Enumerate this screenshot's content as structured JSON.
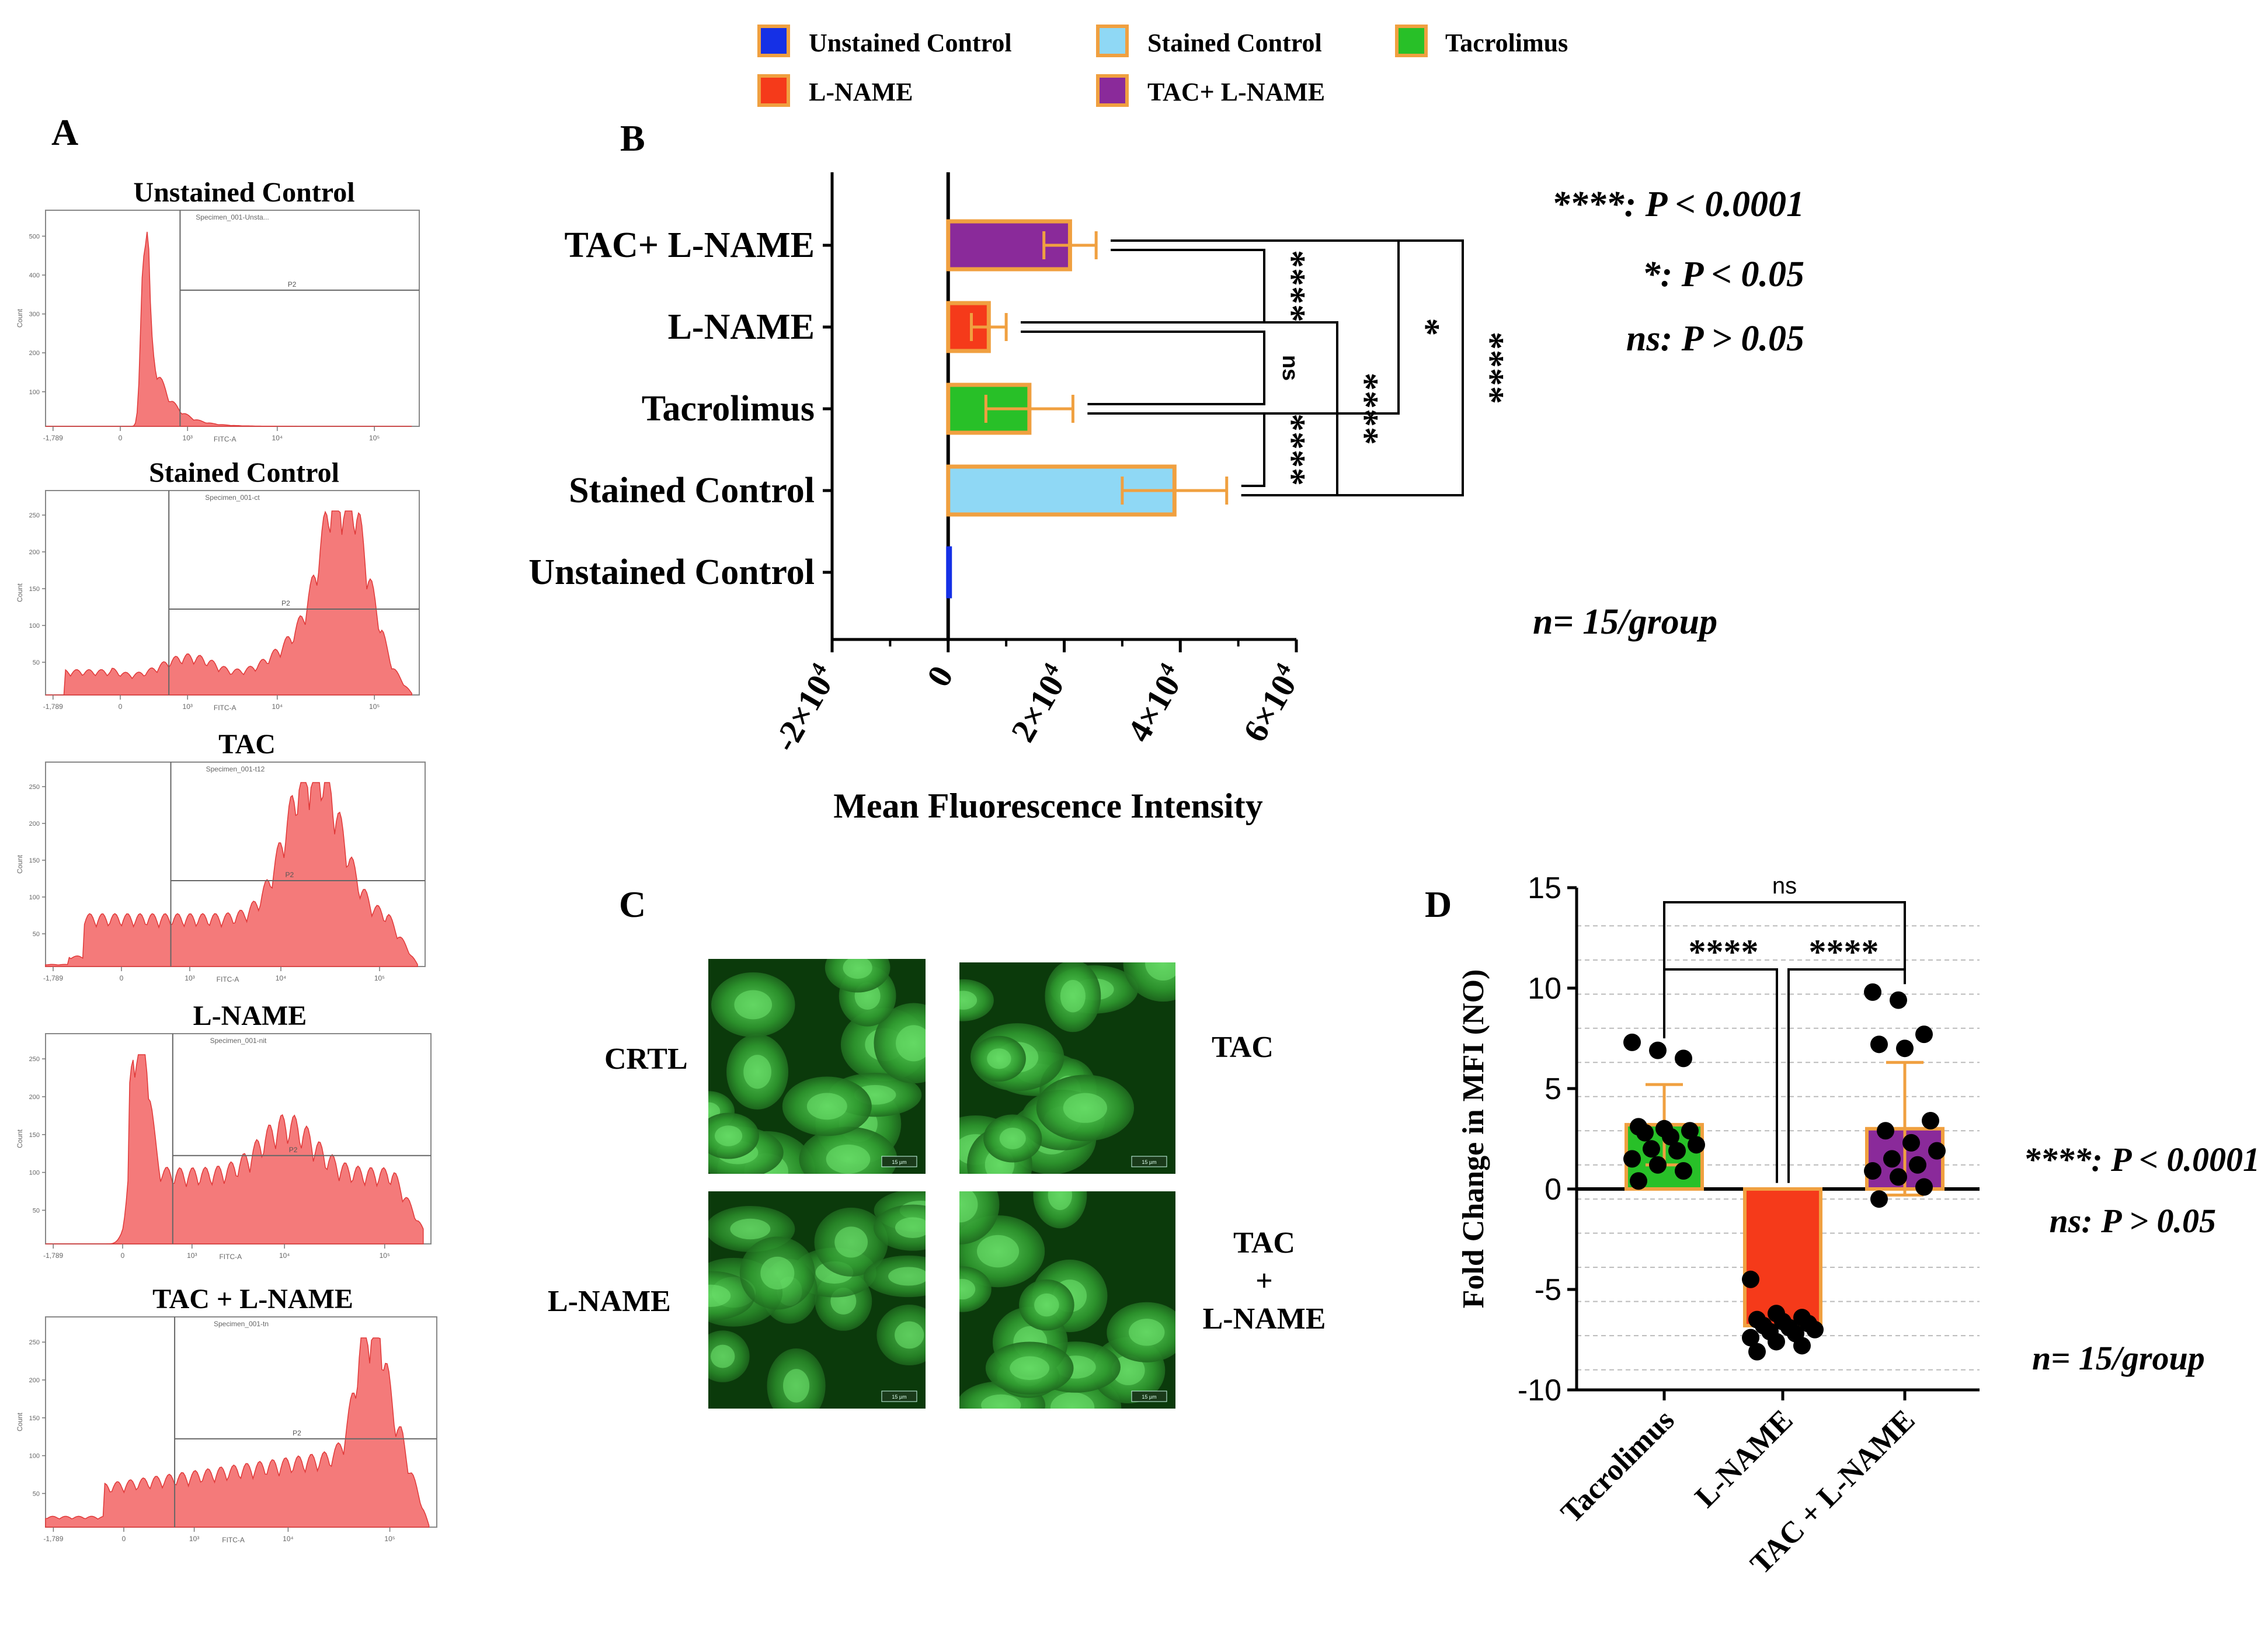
{
  "legend": [
    {
      "label": "Unstained Control",
      "fill": "#1530e6",
      "stroke": "#1530e6"
    },
    {
      "label": "Stained Control",
      "fill": "#8fd8f5",
      "stroke": "#f0a040"
    },
    {
      "label": "Tacrolimus",
      "fill": "#28c028",
      "stroke": "#f0a040"
    },
    {
      "label": "L-NAME",
      "fill": "#f53a1a",
      "stroke": "#f0a040"
    },
    {
      "label": "TAC+ L-NAME",
      "fill": "#8a2a9a",
      "stroke": "#f0a040"
    }
  ],
  "colors": {
    "hist_fill": "#f47a7a",
    "hist_line": "#e03838",
    "err": "#f0a040",
    "micro_bg": "#0b3a0b",
    "micro_cell": "#3fbf3f"
  },
  "panel_letters": {
    "a": "A",
    "b": "B",
    "c": "C",
    "d": "D"
  },
  "panel_a": {
    "histograms": [
      {
        "title": "Unstained Control",
        "caption": "Specimen_001-Unsta...",
        "axis_label": "FITC-A",
        "gate": "P2",
        "ticks": [
          "-1,789",
          "0",
          "10³",
          "10⁴",
          "10⁵"
        ],
        "y_ticks": [
          "500",
          "400",
          "300",
          "200",
          "100"
        ],
        "y_label": "Count"
      },
      {
        "title": "Stained Control",
        "caption": "Specimen_001-ct",
        "axis_label": "FITC-A",
        "gate": "P2",
        "ticks": [
          "-1,789",
          "0",
          "10³",
          "10⁴",
          "10⁵"
        ],
        "y_ticks": [
          "250",
          "200",
          "150",
          "100",
          "50"
        ],
        "y_label": "Count"
      },
      {
        "title": "TAC",
        "caption": "Specimen_001-t12",
        "axis_label": "FITC-A",
        "gate": "P2",
        "ticks": [
          "-1,789",
          "0",
          "10³",
          "10⁴",
          "10⁵"
        ],
        "y_ticks": [
          "250",
          "200",
          "150",
          "100",
          "50"
        ],
        "y_label": "Count"
      },
      {
        "title": "L-NAME",
        "caption": "Specimen_001-nit",
        "axis_label": "FITC-A",
        "gate": "P2",
        "ticks": [
          "-1,789",
          "0",
          "10³",
          "10⁴",
          "10⁵"
        ],
        "y_ticks": [
          "250",
          "200",
          "150",
          "100",
          "50"
        ],
        "y_label": "Count"
      },
      {
        "title": "TAC + L-NAME",
        "caption": "Specimen_001-tn",
        "axis_label": "FITC-A",
        "gate": "P2",
        "ticks": [
          "-1,789",
          "0",
          "10³",
          "10⁴",
          "10⁵"
        ],
        "y_ticks": [
          "250",
          "200",
          "150",
          "100",
          "50"
        ],
        "y_label": "Count"
      }
    ]
  },
  "chart_data": [
    {
      "type": "bar",
      "orientation": "horizontal",
      "categories": [
        "TAC+ L-NAME",
        "L-NAME",
        "Tacrolimus",
        "Stained Control",
        "Unstained Control"
      ],
      "values": [
        21000,
        7000,
        14000,
        39000,
        300
      ],
      "errors": [
        4500,
        3000,
        7500,
        9000,
        0
      ],
      "xlim": [
        -20000,
        60000
      ],
      "x_ticks": [
        -20000,
        0,
        20000,
        40000,
        60000
      ],
      "x_tick_labels": [
        "-2×10",
        "0",
        "2×10",
        "4×10",
        "6×10"
      ],
      "x_tick_exp": "4",
      "xlabel": "Mean Fluorescence Intensity",
      "comparisons": [
        {
          "a": "TAC+ L-NAME",
          "b": "L-NAME",
          "label": "****"
        },
        {
          "a": "L-NAME",
          "b": "Tacrolimus",
          "label": "ns"
        },
        {
          "a": "Tacrolimus",
          "b": "Stained Control",
          "label": "****"
        },
        {
          "a": "L-NAME",
          "b": "Stained Control",
          "label": "****"
        },
        {
          "a": "TAC+ L-NAME",
          "b": "Tacrolimus",
          "label": "*"
        },
        {
          "a": "TAC+ L-NAME",
          "b": "Stained Control",
          "label": "****"
        }
      ],
      "notes": [
        "****: P < 0.0001",
        "*: P < 0.05",
        "ns: P > 0.05"
      ],
      "n_label": "n= 15/group"
    },
    {
      "type": "bar",
      "categories": [
        "Tacrolimus",
        "L-NAME",
        "TAC + L-NAME"
      ],
      "values": [
        3.2,
        -6.8,
        3.0
      ],
      "errors": [
        2.0,
        0,
        3.3
      ],
      "ylim": [
        -10,
        15
      ],
      "y_ticks": [
        -10,
        -5,
        0,
        5,
        10,
        15
      ],
      "ylabel": "Fold Change in MFI (NO)",
      "points": [
        [
          7.3,
          6.9,
          6.5,
          3.1,
          3.0,
          2.9,
          2.8,
          2.6,
          2.2,
          2.0,
          1.9,
          1.5,
          1.2,
          0.9,
          0.4
        ],
        [
          -4.5,
          -6.2,
          -6.4,
          -6.5,
          -6.6,
          -6.7,
          -6.8,
          -6.9,
          -7.0,
          -7.1,
          -7.2,
          -7.4,
          -7.6,
          -7.8,
          -8.1
        ],
        [
          9.8,
          9.4,
          7.7,
          7.2,
          7.0,
          3.4,
          2.9,
          2.3,
          1.9,
          1.5,
          1.2,
          0.9,
          0.6,
          0.1,
          -0.5
        ]
      ],
      "comparisons": [
        {
          "a": "Tacrolimus",
          "b": "TAC + L-NAME",
          "label": "ns"
        },
        {
          "a": "Tacrolimus",
          "b": "L-NAME",
          "label": "****"
        },
        {
          "a": "L-NAME",
          "b": "TAC + L-NAME",
          "label": "****"
        }
      ],
      "notes": [
        "****: P < 0.0001",
        "ns: P > 0.05"
      ],
      "n_label": "n= 15/group"
    }
  ],
  "panel_c": {
    "labels": [
      "CRTL",
      "TAC",
      "L-NAME",
      "TAC",
      "+",
      "L-NAME"
    ],
    "scalebar": "15 µm"
  }
}
